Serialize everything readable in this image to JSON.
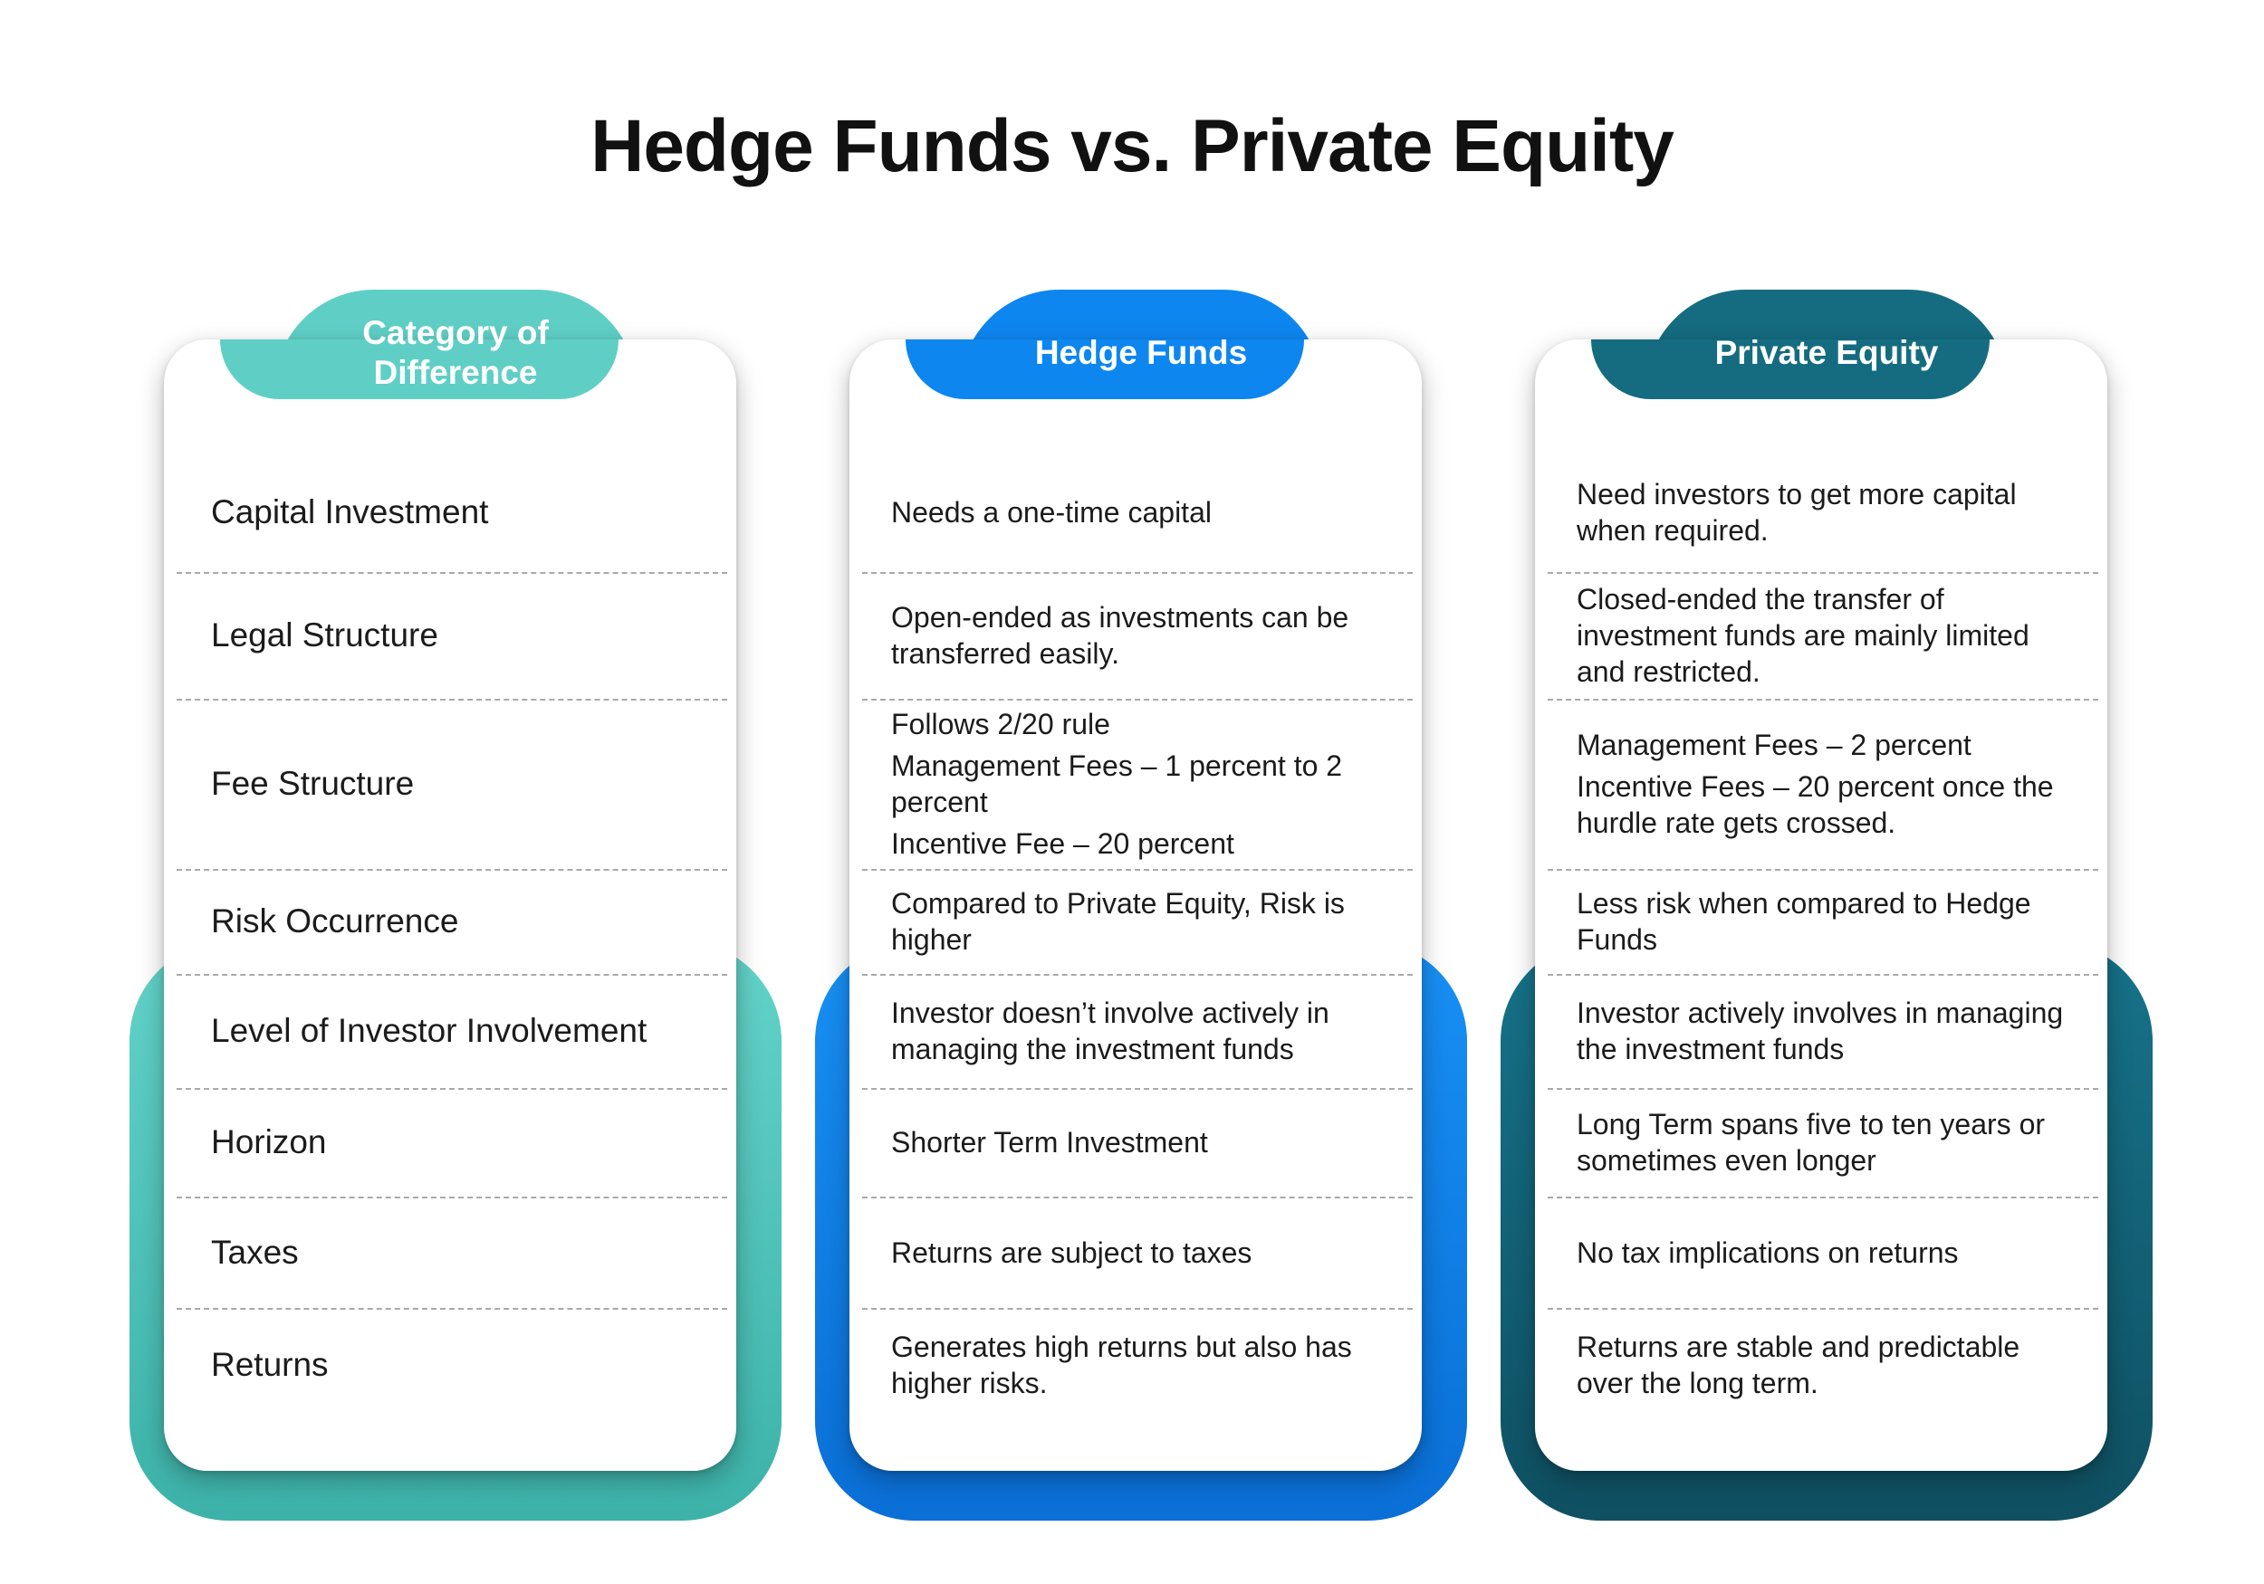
{
  "title": "Hedge Funds vs. Private Equity",
  "colors": {
    "category": "#5fcfc6",
    "hedge_funds": "#0d86f0",
    "private_equity": "#156c80"
  },
  "columns": {
    "category": {
      "header": "Category of Difference",
      "rows": [
        "Capital Investment",
        "Legal Structure",
        "Fee Structure",
        "Risk Occurrence",
        "Level of Investor Involvement",
        "Horizon",
        "Taxes",
        "Returns"
      ]
    },
    "hedge_funds": {
      "header": "Hedge Funds",
      "rows": [
        [
          "Needs a one-time capital"
        ],
        [
          "Open-ended as investments can be transferred easily."
        ],
        [
          "Follows 2/20 rule",
          "Management Fees – 1 percent to 2 percent",
          "Incentive Fee – 20 percent"
        ],
        [
          "Compared to Private Equity, Risk is higher"
        ],
        [
          "Investor doesn’t involve actively in managing the investment funds"
        ],
        [
          "Shorter Term Investment"
        ],
        [
          "Returns are subject to taxes"
        ],
        [
          "Generates high returns but also has higher risks."
        ]
      ]
    },
    "private_equity": {
      "header": "Private Equity",
      "rows": [
        [
          "Need investors to get more capital when required."
        ],
        [
          "Closed-ended the transfer of investment funds are mainly limited and restricted."
        ],
        [
          "Management Fees – 2 percent",
          "Incentive Fees – 20 percent once the hurdle rate gets crossed."
        ],
        [
          "Less risk when compared to Hedge Funds"
        ],
        [
          "Investor actively involves in managing the investment funds"
        ],
        [
          "Long Term spans five to ten years or sometimes even longer"
        ],
        [
          "No tax implications on returns"
        ],
        [
          "Returns are stable and predictable over the long term."
        ]
      ]
    }
  }
}
